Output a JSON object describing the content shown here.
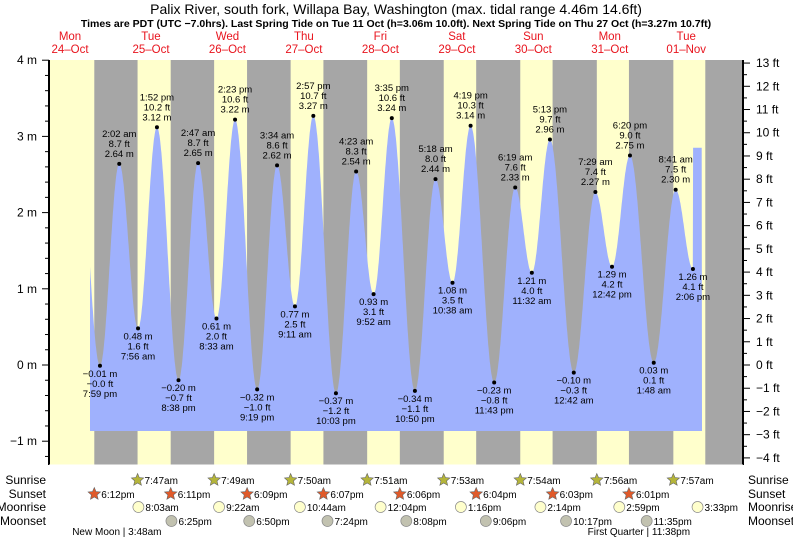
{
  "chart_data": {
    "type": "area",
    "title": "Palix River, south fork, Willapa Bay, Washington (max. tidal range 4.46m 14.6ft)",
    "subtitle": "Times are PDT (UTC −7.0hrs). Last Spring Tide on Tue 11 Oct (h=3.06m 10.0ft). Next Spring Tide on Thu 27 Oct (h=3.27m 10.7ft)",
    "ylabel_left": "m",
    "ylabel_right": "ft",
    "ylim_m": [
      -1,
      4
    ],
    "left_ticks": [
      "−1 m",
      "0 m",
      "1 m",
      "2 m",
      "3 m",
      "4 m"
    ],
    "right_ticks": [
      "−4 ft",
      "−3 ft",
      "−2 ft",
      "−1 ft",
      "0 ft",
      "1 ft",
      "2 ft",
      "3 ft",
      "4 ft",
      "5 ft",
      "6 ft",
      "7 ft",
      "8 ft",
      "9 ft",
      "10 ft",
      "11 ft",
      "12 ft",
      "13 ft"
    ],
    "days": [
      {
        "dow": "Mon",
        "date": "24–Oct"
      },
      {
        "dow": "Tue",
        "date": "25–Oct"
      },
      {
        "dow": "Wed",
        "date": "26–Oct"
      },
      {
        "dow": "Thu",
        "date": "27–Oct"
      },
      {
        "dow": "Fri",
        "date": "28–Oct"
      },
      {
        "dow": "Sat",
        "date": "29–Oct"
      },
      {
        "dow": "Sun",
        "date": "30–Oct"
      },
      {
        "dow": "Mon",
        "date": "31–Oct"
      },
      {
        "dow": "Tue",
        "date": "01–Nov"
      }
    ],
    "tides": [
      {
        "day": 0,
        "time": "7:59 pm",
        "m": "−0.01 m",
        "ft": "−0.0 ft",
        "value": -0.01,
        "type": "low"
      },
      {
        "day": 1,
        "time": "2:02 am",
        "m": "2.64 m",
        "ft": "8.7 ft",
        "value": 2.64,
        "type": "high"
      },
      {
        "day": 1,
        "time": "7:56 am",
        "m": "0.48 m",
        "ft": "1.6 ft",
        "value": 0.48,
        "type": "low"
      },
      {
        "day": 1,
        "time": "1:52 pm",
        "m": "3.12 m",
        "ft": "10.2 ft",
        "value": 3.12,
        "type": "high"
      },
      {
        "day": 1,
        "time": "8:38 pm",
        "m": "−0.20 m",
        "ft": "−0.7 ft",
        "value": -0.2,
        "type": "low"
      },
      {
        "day": 2,
        "time": "2:47 am",
        "m": "2.65 m",
        "ft": "8.7 ft",
        "value": 2.65,
        "type": "high"
      },
      {
        "day": 2,
        "time": "8:33 am",
        "m": "0.61 m",
        "ft": "2.0 ft",
        "value": 0.61,
        "type": "low"
      },
      {
        "day": 2,
        "time": "2:23 pm",
        "m": "3.22 m",
        "ft": "10.6 ft",
        "value": 3.22,
        "type": "high"
      },
      {
        "day": 2,
        "time": "9:19 pm",
        "m": "−0.32 m",
        "ft": "−1.0 ft",
        "value": -0.32,
        "type": "low"
      },
      {
        "day": 3,
        "time": "3:34 am",
        "m": "2.62 m",
        "ft": "8.6 ft",
        "value": 2.62,
        "type": "high"
      },
      {
        "day": 3,
        "time": "9:11 am",
        "m": "0.77 m",
        "ft": "2.5 ft",
        "value": 0.77,
        "type": "low"
      },
      {
        "day": 3,
        "time": "2:57 pm",
        "m": "3.27 m",
        "ft": "10.7 ft",
        "value": 3.27,
        "type": "high"
      },
      {
        "day": 3,
        "time": "10:03 pm",
        "m": "−0.37 m",
        "ft": "−1.2 ft",
        "value": -0.37,
        "type": "low"
      },
      {
        "day": 4,
        "time": "4:23 am",
        "m": "2.54 m",
        "ft": "8.3 ft",
        "value": 2.54,
        "type": "high"
      },
      {
        "day": 4,
        "time": "9:52 am",
        "m": "0.93 m",
        "ft": "3.1 ft",
        "value": 0.93,
        "type": "low"
      },
      {
        "day": 4,
        "time": "3:35 pm",
        "m": "3.24 m",
        "ft": "10.6 ft",
        "value": 3.24,
        "type": "high"
      },
      {
        "day": 4,
        "time": "10:50 pm",
        "m": "−0.34 m",
        "ft": "−1.1 ft",
        "value": -0.34,
        "type": "low"
      },
      {
        "day": 5,
        "time": "5:18 am",
        "m": "2.44 m",
        "ft": "8.0 ft",
        "value": 2.44,
        "type": "high"
      },
      {
        "day": 5,
        "time": "10:38 am",
        "m": "1.08 m",
        "ft": "3.5 ft",
        "value": 1.08,
        "type": "low"
      },
      {
        "day": 5,
        "time": "4:19 pm",
        "m": "3.14 m",
        "ft": "10.3 ft",
        "value": 3.14,
        "type": "high"
      },
      {
        "day": 5,
        "time": "11:43 pm",
        "m": "−0.23 m",
        "ft": "−0.8 ft",
        "value": -0.23,
        "type": "low"
      },
      {
        "day": 6,
        "time": "6:19 am",
        "m": "2.33 m",
        "ft": "7.6 ft",
        "value": 2.33,
        "type": "high"
      },
      {
        "day": 6,
        "time": "11:32 am",
        "m": "1.21 m",
        "ft": "4.0 ft",
        "value": 1.21,
        "type": "low"
      },
      {
        "day": 6,
        "time": "5:13 pm",
        "m": "2.96 m",
        "ft": "9.7 ft",
        "value": 2.96,
        "type": "high"
      },
      {
        "day": 7,
        "time": "12:42 am",
        "m": "−0.10 m",
        "ft": "−0.3 ft",
        "value": -0.1,
        "type": "low"
      },
      {
        "day": 7,
        "time": "7:29 am",
        "m": "2.27 m",
        "ft": "7.4 ft",
        "value": 2.27,
        "type": "high"
      },
      {
        "day": 7,
        "time": "12:42 pm",
        "m": "1.29 m",
        "ft": "4.2 ft",
        "value": 1.29,
        "type": "low"
      },
      {
        "day": 7,
        "time": "6:20 pm",
        "m": "2.75 m",
        "ft": "9.0 ft",
        "value": 2.75,
        "type": "high"
      },
      {
        "day": 8,
        "time": "1:48 am",
        "m": "0.03 m",
        "ft": "0.1 ft",
        "value": 0.03,
        "type": "low"
      },
      {
        "day": 8,
        "time": "8:41 am",
        "m": "2.30 m",
        "ft": "7.5 ft",
        "value": 2.3,
        "type": "high"
      },
      {
        "day": 8,
        "time": "2:06 pm",
        "m": "1.26 m",
        "ft": "4.1 ft",
        "value": 1.26,
        "type": "low"
      }
    ],
    "row_labels": {
      "sunrise": "Sunrise",
      "sunset": "Sunset",
      "moonrise": "Moonrise",
      "moonset": "Moonset"
    },
    "sunrise": [
      {
        "day": 1,
        "time": "7:47am"
      },
      {
        "day": 2,
        "time": "7:49am"
      },
      {
        "day": 3,
        "time": "7:50am"
      },
      {
        "day": 4,
        "time": "7:51am"
      },
      {
        "day": 5,
        "time": "7:53am"
      },
      {
        "day": 6,
        "time": "7:54am"
      },
      {
        "day": 7,
        "time": "7:56am"
      },
      {
        "day": 8,
        "time": "7:57am"
      }
    ],
    "sunset": [
      {
        "day": 0,
        "time": "6:12pm"
      },
      {
        "day": 1,
        "time": "6:11pm"
      },
      {
        "day": 2,
        "time": "6:09pm"
      },
      {
        "day": 3,
        "time": "6:07pm"
      },
      {
        "day": 4,
        "time": "6:06pm"
      },
      {
        "day": 5,
        "time": "6:04pm"
      },
      {
        "day": 6,
        "time": "6:03pm"
      },
      {
        "day": 7,
        "time": "6:01pm"
      }
    ],
    "moonrise": [
      {
        "day": 1,
        "time": "8:03am"
      },
      {
        "day": 2,
        "time": "9:22am"
      },
      {
        "day": 3,
        "time": "10:44am"
      },
      {
        "day": 4,
        "time": "12:04pm"
      },
      {
        "day": 5,
        "time": "1:16pm"
      },
      {
        "day": 6,
        "time": "2:14pm"
      },
      {
        "day": 7,
        "time": "2:59pm"
      },
      {
        "day": 8,
        "time": "3:33pm"
      }
    ],
    "moonset": [
      {
        "day": 1,
        "time": "6:25pm"
      },
      {
        "day": 2,
        "time": "6:50pm"
      },
      {
        "day": 3,
        "time": "7:24pm"
      },
      {
        "day": 4,
        "time": "8:08pm"
      },
      {
        "day": 5,
        "time": "9:06pm"
      },
      {
        "day": 6,
        "time": "10:17pm"
      },
      {
        "day": 7,
        "time": "11:35pm"
      }
    ],
    "moon_phases": [
      {
        "day": 1,
        "time": "3:48am",
        "label": "New Moon | 3:48am"
      },
      {
        "day": 7,
        "time": "11:38pm",
        "label": "First Quarter | 11:38pm"
      }
    ],
    "extrapolated_edges": {
      "before": {
        "hour": 13.2,
        "m": 2.95
      },
      "after": {
        "hour": 200.0,
        "m": 2.85
      }
    },
    "colors": {
      "day": "#ffffcc",
      "night": "#a6a6a6",
      "water": "#9fb1fd",
      "daylabel": "#e8141e",
      "sunrise": "#b5b53a",
      "sunset": "#e05a2a",
      "moonrise": "#ffffcc",
      "moonset": "#c2c2b0"
    }
  }
}
